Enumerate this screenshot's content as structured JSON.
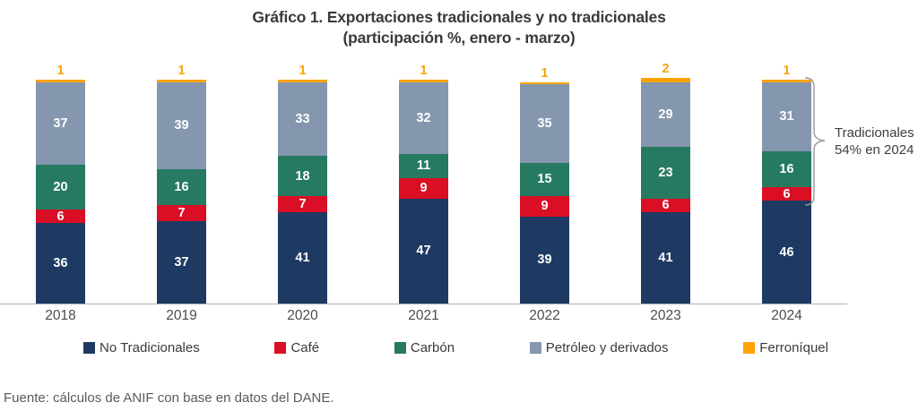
{
  "title": {
    "line1": "Gráfico 1. Exportaciones tradicionales y no tradicionales",
    "line2": "(participación %, enero - marzo)"
  },
  "chart_data": {
    "type": "bar",
    "stacked": true,
    "categories": [
      "2018",
      "2019",
      "2020",
      "2021",
      "2022",
      "2023",
      "2024"
    ],
    "series": [
      {
        "name": "No Tradicionales",
        "color": "#1e3a63",
        "values": [
          36,
          37,
          41,
          47,
          39,
          41,
          46
        ]
      },
      {
        "name": "Café",
        "color": "#da0e24",
        "values": [
          6,
          7,
          7,
          9,
          9,
          6,
          6
        ]
      },
      {
        "name": "Carbón",
        "color": "#267a61",
        "values": [
          20,
          16,
          18,
          11,
          15,
          23,
          16
        ]
      },
      {
        "name": "Petróleo y derivados",
        "color": "#8596af",
        "values": [
          37,
          39,
          33,
          32,
          35,
          29,
          31
        ]
      },
      {
        "name": "Ferroníquel",
        "color": "#ffa305",
        "values": [
          1,
          1,
          1,
          1,
          1,
          2,
          1
        ]
      }
    ],
    "value_labels": "inside segments; Ferroníquel value above bar in orange",
    "ylim": [
      0,
      101
    ],
    "grid": false,
    "legend_position": "bottom",
    "annotation": "Tradicionales 54% en 2024 (bracket over Café+Carbón+Petróleo+Ferroníquel of 2024 bar)"
  },
  "annotation": {
    "line1": "Tradicionales",
    "line2": "54% en 2024"
  },
  "footer": "Fuente: cálculos de ANIF con base en datos del DANE.",
  "colors": {
    "axis_line": "#b0b0b0",
    "bracket": "#9a9a9a",
    "orange_label": "#f9a302",
    "title_text": "#3a3a3a"
  }
}
